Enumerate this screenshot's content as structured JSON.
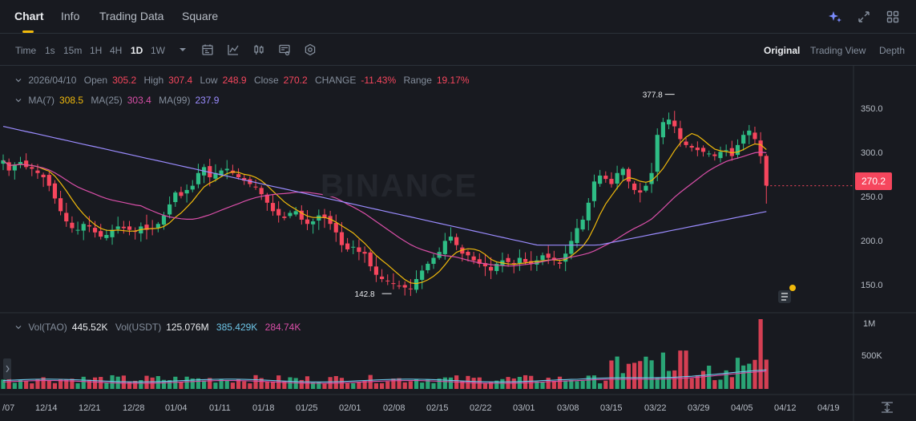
{
  "tabs": [
    {
      "label": "Chart",
      "active": true
    },
    {
      "label": "Info"
    },
    {
      "label": "Trading Data"
    },
    {
      "label": "Square"
    }
  ],
  "toolbar": {
    "time_label": "Time",
    "intervals": [
      "1s",
      "15m",
      "1H",
      "4H",
      "1D",
      "1W"
    ],
    "active_interval": "1D",
    "views": [
      "Original",
      "Trading View",
      "Depth"
    ],
    "active_view": "Original"
  },
  "ohlc": {
    "date": "2026/04/10",
    "open_label": "Open",
    "open": "305.2",
    "high_label": "High",
    "high": "307.4",
    "low_label": "Low",
    "low": "248.9",
    "close_label": "Close",
    "close": "270.2",
    "change_label": "CHANGE",
    "change": "-11.43%",
    "range_label": "Range",
    "range": "19.17%"
  },
  "ma": {
    "ma7_label": "MA(7)",
    "ma7": "308.5",
    "ma25_label": "MA(25)",
    "ma25": "303.4",
    "ma99_label": "MA(99)",
    "ma99": "237.9"
  },
  "volume": {
    "tao_label": "Vol(TAO)",
    "tao": "445.52K",
    "usdt_label": "Vol(USDT)",
    "usdt": "125.076M",
    "ma1": "385.429K",
    "ma2": "284.74K"
  },
  "watermark": "BINANCE",
  "price_axis": [
    "350.0",
    "300.0",
    "250.0",
    "200.0",
    "150.0"
  ],
  "volume_axis": [
    "1M",
    "500K"
  ],
  "current_price": "270.2",
  "high_marker": "377.8",
  "low_marker": "142.8",
  "date_axis": [
    "/07",
    "12/14",
    "12/21",
    "12/28",
    "01/04",
    "01/11",
    "01/18",
    "01/25",
    "02/01",
    "02/08",
    "02/15",
    "02/22",
    "03/01",
    "03/08",
    "03/15",
    "03/22",
    "03/29",
    "04/05",
    "04/12",
    "04/19"
  ],
  "colors": {
    "up": "#2ebd85",
    "down": "#f6465d",
    "ma7": "#f0b90b",
    "ma25": "#d94fa8",
    "ma99": "#9b8cff",
    "vol_ma1": "#6ec6e8",
    "vol_ma2": "#d94fa8"
  },
  "chart_data": {
    "type": "candlestick",
    "interval": "1D",
    "price_range": [
      125,
      385
    ],
    "closes": [
      300,
      288,
      295,
      298,
      292,
      290,
      285,
      280,
      270,
      255,
      240,
      228,
      220,
      218,
      225,
      222,
      215,
      210,
      212,
      218,
      222,
      220,
      218,
      216,
      222,
      218,
      220,
      225,
      235,
      248,
      262,
      258,
      265,
      270,
      285,
      292,
      280,
      285,
      288,
      290,
      285,
      280,
      276,
      272,
      268,
      260,
      250,
      240,
      235,
      232,
      238,
      240,
      230,
      225,
      228,
      235,
      232,
      225,
      215,
      200,
      195,
      198,
      192,
      190,
      175,
      165,
      160,
      158,
      155,
      152,
      150,
      148,
      160,
      170,
      178,
      185,
      192,
      205,
      210,
      200,
      190,
      188,
      182,
      178,
      175,
      170,
      178,
      182,
      180,
      178,
      185,
      180,
      178,
      182,
      188,
      185,
      182,
      178,
      190,
      205,
      220,
      230,
      250,
      275,
      282,
      278,
      272,
      285,
      290,
      275,
      265,
      262,
      270,
      285,
      330,
      345,
      348,
      340,
      325,
      318,
      315,
      312,
      310,
      308,
      305,
      310,
      312,
      305,
      318,
      330,
      335,
      325,
      305,
      270
    ],
    "ma7_last": 308.5,
    "ma25_last": 303.4,
    "ma99_last": 237.9,
    "period_high": 377.8,
    "period_low": 142.8,
    "volume_last_tao": 445520
  }
}
